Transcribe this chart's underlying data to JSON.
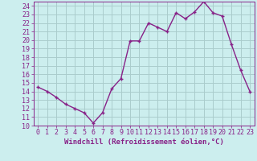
{
  "x": [
    0,
    1,
    2,
    3,
    4,
    5,
    6,
    7,
    8,
    9,
    10,
    11,
    12,
    13,
    14,
    15,
    16,
    17,
    18,
    19,
    20,
    21,
    22,
    23
  ],
  "y": [
    14.5,
    14.0,
    13.3,
    12.5,
    12.0,
    11.5,
    10.3,
    11.5,
    14.3,
    15.5,
    19.9,
    19.9,
    22.0,
    21.5,
    21.0,
    23.2,
    22.5,
    23.3,
    24.5,
    23.2,
    22.8,
    19.5,
    16.5,
    14.0
  ],
  "line_color": "#882288",
  "marker": "+",
  "marker_size": 3,
  "background_color": "#cceeee",
  "grid_color": "#aacccc",
  "xlabel": "Windchill (Refroidissement éolien,°C)",
  "xlim": [
    -0.5,
    23.5
  ],
  "ylim": [
    10,
    24.5
  ],
  "xtick_labels": [
    "0",
    "1",
    "2",
    "3",
    "4",
    "5",
    "6",
    "7",
    "8",
    "9",
    "10",
    "11",
    "12",
    "13",
    "14",
    "15",
    "16",
    "17",
    "18",
    "19",
    "20",
    "21",
    "22",
    "23"
  ],
  "ytick_values": [
    10,
    11,
    12,
    13,
    14,
    15,
    16,
    17,
    18,
    19,
    20,
    21,
    22,
    23,
    24
  ],
  "xlabel_fontsize": 6.5,
  "tick_fontsize": 6,
  "linewidth": 1.0
}
